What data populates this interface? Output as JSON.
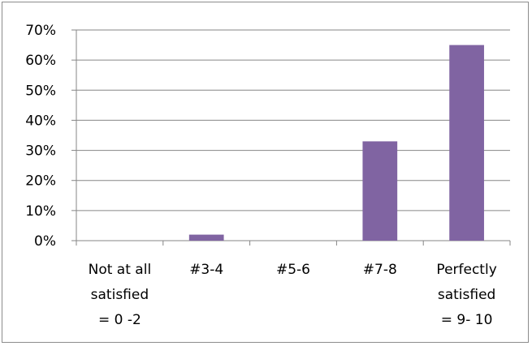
{
  "chart_data": {
    "type": "bar",
    "categories": [
      [
        "Not at all",
        "satisfied",
        "= 0 -2"
      ],
      [
        "#3-4"
      ],
      [
        "#5-6"
      ],
      [
        "#7-8"
      ],
      [
        "Perfectly",
        "satisfied",
        "= 9- 10"
      ]
    ],
    "values": [
      0,
      2,
      0,
      33,
      65
    ],
    "ylim": [
      0,
      70
    ],
    "y_ticks": [
      "0%",
      "10%",
      "20%",
      "30%",
      "40%",
      "50%",
      "60%",
      "70%"
    ],
    "grid": true,
    "legend": "none",
    "bar_color": "#8064a2",
    "grid_color": "#868686",
    "axis_color": "#868686"
  }
}
